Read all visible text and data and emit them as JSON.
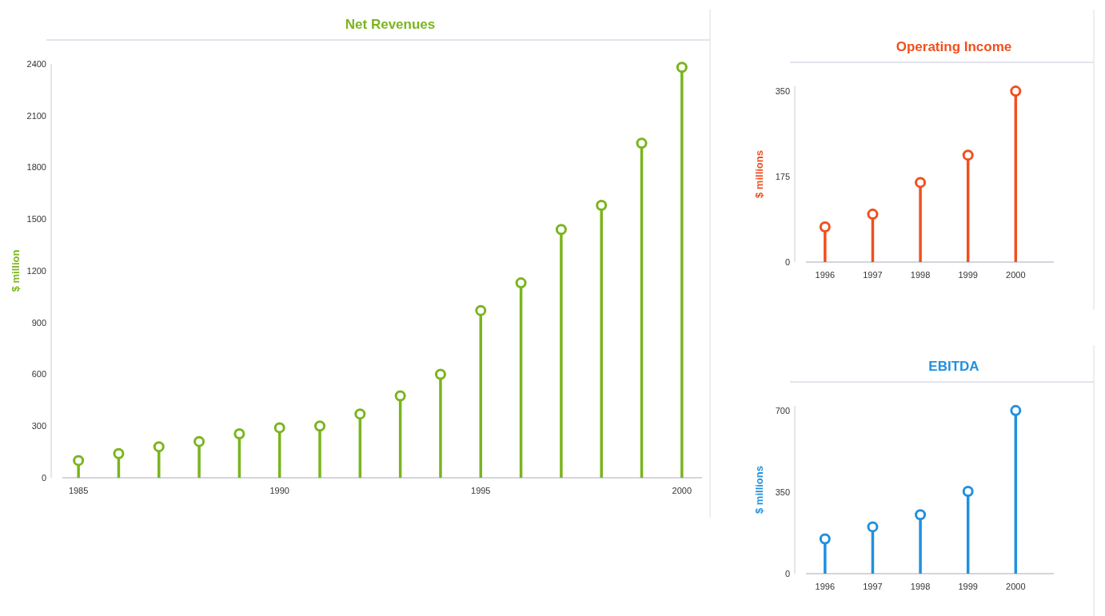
{
  "chart_data": [
    {
      "type": "lollipop",
      "title": "Net Revenues",
      "ylabel": "$ million",
      "x": [
        1985,
        1986,
        1987,
        1988,
        1989,
        1990,
        1991,
        1992,
        1993,
        1994,
        1995,
        1996,
        1997,
        1998,
        1999,
        2000
      ],
      "xlim": [
        1984.6,
        2000.5
      ],
      "xticks": [
        1985,
        1990,
        1995,
        2000
      ],
      "ylim": [
        0,
        2400
      ],
      "yticks": [
        0,
        300,
        600,
        900,
        1200,
        1500,
        1800,
        2100,
        2400
      ],
      "series": [
        {
          "color": "#7ab51d",
          "values": [
            100,
            140,
            180,
            210,
            255,
            290,
            300,
            370,
            475,
            600,
            970,
            1130,
            1440,
            1580,
            1940,
            2380
          ]
        }
      ],
      "marker": "circle",
      "grid": false
    },
    {
      "type": "lollipop",
      "title": "Operating Income",
      "ylabel": "$ millions",
      "x": [
        1996,
        1997,
        1998,
        1999,
        2000
      ],
      "xlim": [
        1995.6,
        2000.8
      ],
      "xticks": [
        1996,
        1997,
        1998,
        1999,
        2000
      ],
      "ylim": [
        0,
        360
      ],
      "yticks": [
        0,
        175,
        350
      ],
      "series": [
        {
          "color": "#f0501e",
          "values": [
            72,
            98,
            163,
            219,
            350
          ]
        }
      ],
      "marker": "circle",
      "grid": false
    },
    {
      "type": "lollipop",
      "title": "EBITDA",
      "ylabel": "$ millions",
      "x": [
        1996,
        1997,
        1998,
        1999,
        2000
      ],
      "xlim": [
        1995.6,
        2000.8
      ],
      "xticks": [
        1996,
        1997,
        1998,
        1999,
        2000
      ],
      "ylim": [
        0,
        720
      ],
      "yticks": [
        0,
        350,
        700
      ],
      "series": [
        {
          "color": "#2190e0",
          "values": [
            149,
            201,
            253,
            353,
            700
          ]
        }
      ],
      "marker": "circle",
      "grid": false
    }
  ]
}
